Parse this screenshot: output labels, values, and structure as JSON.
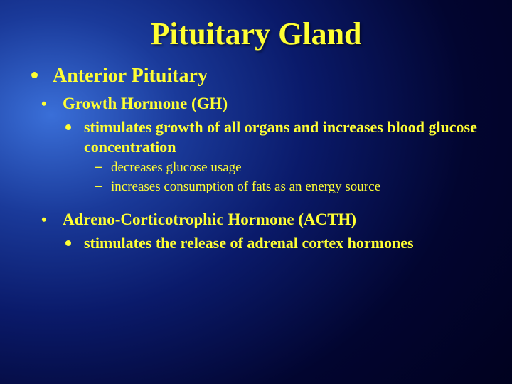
{
  "title": "Pituitary Gland",
  "colors": {
    "text": "#ffff33",
    "background_gradient": [
      "#3a6fd8",
      "#1a3a9a",
      "#0a1a6a",
      "#020530",
      "#000018"
    ]
  },
  "fonts": {
    "family": "Times New Roman",
    "title_size": 44,
    "l1_size": 28,
    "l2_size": 23,
    "l3_size": 22,
    "l4_size": 19
  },
  "l1_text": "Anterior Pituitary",
  "section_a": {
    "header": "Growth Hormone (GH)",
    "sub1": "stimulates growth of all organs and increases blood glucose concentration",
    "detail1": "decreases glucose usage",
    "detail2": "increases consumption of fats as an energy source"
  },
  "section_b": {
    "header": "Adreno-Corticotrophic Hormone (ACTH)",
    "sub1": "stimulates the release of adrenal cortex hormones"
  }
}
